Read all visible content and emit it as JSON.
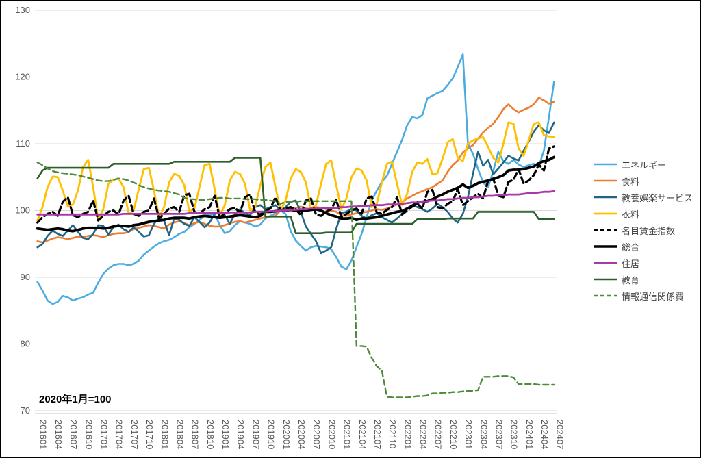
{
  "chart_data": {
    "type": "line",
    "note": "2020年1月=100",
    "grid": "horizontal",
    "legend_position": "right",
    "grid_color": "#D9D9D9",
    "axis_line_color": "#C9C9C9",
    "axis_label_color": "#595959",
    "ylim": [
      70,
      130
    ],
    "y_ticks": [
      70,
      80,
      90,
      100,
      110,
      120,
      130
    ],
    "x_tick_labels": [
      "201601",
      "201604",
      "201607",
      "201610",
      "201701",
      "201704",
      "201707",
      "201710",
      "201801",
      "201804",
      "201807",
      "201810",
      "201901",
      "201904",
      "201907",
      "201910",
      "202001",
      "202004",
      "202007",
      "202010",
      "202101",
      "202104",
      "202107",
      "202110",
      "202201",
      "202204",
      "202207",
      "202210",
      "202301",
      "202304",
      "202307",
      "202310",
      "202401",
      "202404",
      "202407"
    ],
    "months": [
      "201601",
      "201602",
      "201603",
      "201604",
      "201605",
      "201606",
      "201607",
      "201608",
      "201609",
      "201610",
      "201611",
      "201612",
      "201701",
      "201702",
      "201703",
      "201704",
      "201705",
      "201706",
      "201707",
      "201708",
      "201709",
      "201710",
      "201711",
      "201712",
      "201801",
      "201802",
      "201803",
      "201804",
      "201805",
      "201806",
      "201807",
      "201808",
      "201809",
      "201810",
      "201811",
      "201812",
      "201901",
      "201902",
      "201903",
      "201904",
      "201905",
      "201906",
      "201907",
      "201908",
      "201909",
      "201910",
      "201911",
      "201912",
      "202001",
      "202002",
      "202003",
      "202004",
      "202005",
      "202006",
      "202007",
      "202008",
      "202009",
      "202010",
      "202011",
      "202012",
      "202101",
      "202102",
      "202103",
      "202104",
      "202105",
      "202106",
      "202107",
      "202108",
      "202109",
      "202110",
      "202111",
      "202112",
      "202201",
      "202202",
      "202203",
      "202204",
      "202205",
      "202206",
      "202207",
      "202208",
      "202209",
      "202210",
      "202211",
      "202212",
      "202301",
      "202302",
      "202303",
      "202304",
      "202305",
      "202306",
      "202307",
      "202308",
      "202309",
      "202310",
      "202311",
      "202312",
      "202401",
      "202402",
      "202403",
      "202404",
      "202405",
      "202406",
      "202407"
    ],
    "series": [
      {
        "id": "energy",
        "label": "エネルギー",
        "color": "#4DACDF",
        "width": 2.6,
        "dash": "",
        "values": [
          89.3,
          88.0,
          86.5,
          86.0,
          86.3,
          87.2,
          87.0,
          86.5,
          86.8,
          87.0,
          87.4,
          87.7,
          89.2,
          90.5,
          91.3,
          91.8,
          92.0,
          92.0,
          91.8,
          92.0,
          92.5,
          93.4,
          94.0,
          94.6,
          95.1,
          95.4,
          95.6,
          96.0,
          96.5,
          96.8,
          97.5,
          98.0,
          98.6,
          99.2,
          99.4,
          99.5,
          97.8,
          96.6,
          96.9,
          97.8,
          98.4,
          98.2,
          98.0,
          97.6,
          97.9,
          98.8,
          99.2,
          99.6,
          100.0,
          99.5,
          96.9,
          95.5,
          94.7,
          94.0,
          94.5,
          94.7,
          94.6,
          94.5,
          94.2,
          93.0,
          91.6,
          91.2,
          92.5,
          94.5,
          96.5,
          99.0,
          101.5,
          103.0,
          104.3,
          105.2,
          107.0,
          108.8,
          110.6,
          112.8,
          114.0,
          113.8,
          114.3,
          116.8,
          117.2,
          117.6,
          117.9,
          118.8,
          119.8,
          121.5,
          123.4,
          110.0,
          108.5,
          106.2,
          104.2,
          103.5,
          105.9,
          108.8,
          107.4,
          107.0,
          107.6,
          106.9,
          106.5,
          106.8,
          107.0,
          106.6,
          109.0,
          114.0,
          119.3
        ]
      },
      {
        "id": "food",
        "label": "食料",
        "color": "#ED7D31",
        "width": 2.6,
        "dash": "",
        "values": [
          95.4,
          95.2,
          95.5,
          95.8,
          96.0,
          95.9,
          95.7,
          95.9,
          96.1,
          96.0,
          96.2,
          96.3,
          96.2,
          96.0,
          96.3,
          96.5,
          96.6,
          96.6,
          96.8,
          97.2,
          97.4,
          97.6,
          97.8,
          97.7,
          97.5,
          97.3,
          97.9,
          98.2,
          98.4,
          98.1,
          97.8,
          98.1,
          98.3,
          98.0,
          97.7,
          97.6,
          97.6,
          97.8,
          98.1,
          98.3,
          98.4,
          98.2,
          98.4,
          98.6,
          98.8,
          99.0,
          99.1,
          99.2,
          100.0,
          100.3,
          100.2,
          100.4,
          100.6,
          100.3,
          100.2,
          100.5,
          100.4,
          100.2,
          100.0,
          99.8,
          99.3,
          99.2,
          99.4,
          99.6,
          99.7,
          99.8,
          100.0,
          100.2,
          100.1,
          100.3,
          100.6,
          100.9,
          101.3,
          101.8,
          102.2,
          102.6,
          102.9,
          103.2,
          103.5,
          104.0,
          104.5,
          105.8,
          106.8,
          107.5,
          108.7,
          109.3,
          109.8,
          110.8,
          111.7,
          112.4,
          113.0,
          114.0,
          115.2,
          115.9,
          115.2,
          114.7,
          115.1,
          115.4,
          115.9,
          116.9,
          116.5,
          116.0,
          116.3
        ]
      },
      {
        "id": "culture-recreation-services",
        "label": "教養娯楽サービス",
        "color": "#1F6584",
        "width": 2.6,
        "dash": "",
        "values": [
          94.5,
          95.0,
          96.2,
          97.0,
          96.5,
          96.2,
          97.0,
          97.8,
          96.8,
          95.9,
          95.7,
          96.5,
          97.8,
          97.7,
          96.4,
          97.5,
          97.9,
          97.2,
          96.8,
          97.5,
          96.8,
          96.1,
          96.3,
          98.0,
          98.9,
          98.5,
          96.3,
          98.8,
          98.6,
          98.0,
          97.7,
          99.0,
          98.3,
          97.5,
          98.2,
          99.5,
          99.8,
          99.3,
          98.0,
          99.5,
          100.2,
          99.6,
          99.3,
          100.5,
          100.8,
          100.2,
          100.5,
          100.8,
          100.0,
          100.5,
          101.3,
          101.5,
          99.8,
          97.6,
          96.5,
          95.4,
          93.6,
          94.0,
          94.5,
          97.3,
          99.6,
          99.8,
          100.3,
          100.0,
          99.2,
          98.8,
          99.3,
          99.6,
          99.0,
          98.6,
          98.2,
          98.8,
          99.5,
          100.2,
          100.8,
          100.5,
          100.2,
          99.8,
          100.3,
          101.0,
          100.5,
          99.8,
          98.8,
          98.2,
          99.5,
          102.0,
          105.5,
          108.8,
          106.7,
          107.6,
          105.4,
          106.3,
          107.2,
          108.2,
          107.8,
          107.5,
          109.0,
          110.3,
          111.8,
          112.8,
          112.0,
          111.6,
          113.2
        ]
      },
      {
        "id": "clothing",
        "label": "衣料",
        "color": "#FFC000",
        "width": 2.8,
        "dash": "",
        "values": [
          98.5,
          100.5,
          103.5,
          105.1,
          105.0,
          103.0,
          100.6,
          100.9,
          103.0,
          106.5,
          107.6,
          103.5,
          98.6,
          100.2,
          104.0,
          104.6,
          104.8,
          103.5,
          99.5,
          100.0,
          103.2,
          106.2,
          106.4,
          103.0,
          99.0,
          100.5,
          104.2,
          105.5,
          105.2,
          103.8,
          99.8,
          100.3,
          103.5,
          106.8,
          107.0,
          103.2,
          99.2,
          100.8,
          104.5,
          105.8,
          105.5,
          104.0,
          100.0,
          100.5,
          103.8,
          106.5,
          107.2,
          103.5,
          100.0,
          101.5,
          104.8,
          106.2,
          105.8,
          104.2,
          100.3,
          100.8,
          104.0,
          107.0,
          107.5,
          103.8,
          100.2,
          101.8,
          105.0,
          106.3,
          106.0,
          104.5,
          100.5,
          101.0,
          104.2,
          107.0,
          107.3,
          104.0,
          100.8,
          102.5,
          105.8,
          107.2,
          107.0,
          107.7,
          105.4,
          105.6,
          107.8,
          110.2,
          110.7,
          107.9,
          107.4,
          110.0,
          110.5,
          110.8,
          111.0,
          109.5,
          107.9,
          107.2,
          110.0,
          113.2,
          113.0,
          109.3,
          108.2,
          110.5,
          113.0,
          113.2,
          111.3,
          111.1,
          111.0
        ]
      },
      {
        "id": "nominal-wage-index",
        "label": "名目賃金指数",
        "color": "#000000",
        "width": 3.2,
        "dash": "9 5",
        "values": [
          98.2,
          99.0,
          99.5,
          99.8,
          99.2,
          101.3,
          102.0,
          99.3,
          99.0,
          99.5,
          99.8,
          101.5,
          98.5,
          99.2,
          99.8,
          100.0,
          99.4,
          101.5,
          102.2,
          99.5,
          99.2,
          99.8,
          100.0,
          101.8,
          98.8,
          99.5,
          100.3,
          100.5,
          99.8,
          102.3,
          102.5,
          99.8,
          99.5,
          100.2,
          100.5,
          102.2,
          98.9,
          99.6,
          100.2,
          100.4,
          99.7,
          102.0,
          102.4,
          99.7,
          99.4,
          100.0,
          100.3,
          102.0,
          100.0,
          100.3,
          100.5,
          100.2,
          99.3,
          101.5,
          101.8,
          99.4,
          99.2,
          99.8,
          100.2,
          101.6,
          99.0,
          99.5,
          100.0,
          100.3,
          99.5,
          101.8,
          102.1,
          99.7,
          99.5,
          100.1,
          100.5,
          102.0,
          99.4,
          100.0,
          100.6,
          101.0,
          100.3,
          102.8,
          103.1,
          100.5,
          100.3,
          101.0,
          101.4,
          103.2,
          100.8,
          101.4,
          102.0,
          102.5,
          101.8,
          104.5,
          104.8,
          102.2,
          102.0,
          104.3,
          104.6,
          106.2,
          104.0,
          104.5,
          105.3,
          106.9,
          106.0,
          109.3,
          109.6
        ]
      },
      {
        "id": "overall",
        "label": "総合",
        "color": "#000000",
        "width": 3.8,
        "dash": "",
        "values": [
          97.3,
          97.2,
          97.1,
          97.2,
          97.3,
          97.2,
          97.0,
          96.9,
          97.1,
          97.3,
          97.4,
          97.4,
          97.4,
          97.3,
          97.4,
          97.6,
          97.7,
          97.7,
          97.6,
          97.8,
          97.9,
          98.1,
          98.3,
          98.4,
          98.5,
          98.6,
          98.8,
          98.9,
          98.9,
          98.9,
          98.8,
          99.0,
          99.1,
          99.2,
          99.1,
          99.0,
          98.9,
          99.0,
          99.1,
          99.2,
          99.3,
          99.2,
          99.1,
          99.0,
          99.2,
          99.8,
          99.8,
          99.9,
          100.0,
          100.0,
          100.1,
          100.0,
          100.0,
          100.0,
          100.1,
          100.2,
          100.0,
          99.6,
          99.3,
          99.1,
          98.8,
          98.8,
          98.9,
          98.6,
          98.8,
          98.8,
          98.9,
          99.0,
          99.2,
          99.4,
          99.6,
          99.8,
          99.9,
          100.3,
          100.7,
          101.2,
          101.3,
          101.4,
          101.7,
          102.1,
          102.4,
          102.8,
          103.1,
          103.4,
          103.9,
          103.4,
          103.7,
          104.1,
          104.3,
          104.5,
          104.7,
          105.0,
          105.3,
          106.0,
          106.1,
          106.1,
          106.2,
          106.4,
          106.6,
          107.1,
          107.4,
          107.6,
          108.0
        ]
      },
      {
        "id": "housing",
        "label": "住居",
        "color": "#A939A9",
        "width": 2.8,
        "dash": "",
        "values": [
          99.4,
          99.4,
          99.4,
          99.4,
          99.4,
          99.4,
          99.4,
          99.4,
          99.4,
          99.4,
          99.4,
          99.4,
          99.4,
          99.4,
          99.4,
          99.4,
          99.4,
          99.5,
          99.5,
          99.5,
          99.5,
          99.5,
          99.5,
          99.5,
          99.5,
          99.5,
          99.5,
          99.5,
          99.5,
          99.5,
          99.6,
          99.6,
          99.6,
          99.6,
          99.6,
          99.6,
          99.6,
          99.6,
          99.7,
          99.7,
          99.7,
          99.7,
          99.7,
          99.8,
          99.8,
          99.8,
          99.9,
          99.9,
          100.0,
          100.0,
          100.1,
          100.1,
          100.2,
          100.2,
          100.3,
          100.3,
          100.3,
          100.4,
          100.4,
          100.4,
          100.5,
          100.5,
          100.6,
          100.6,
          100.7,
          100.7,
          100.8,
          100.8,
          100.8,
          100.9,
          100.9,
          100.9,
          101.0,
          101.1,
          101.2,
          101.2,
          101.3,
          101.4,
          101.5,
          101.5,
          101.6,
          101.7,
          101.7,
          101.8,
          101.9,
          101.9,
          102.0,
          102.0,
          102.1,
          102.2,
          102.2,
          102.3,
          102.3,
          102.4,
          102.4,
          102.4,
          102.5,
          102.6,
          102.6,
          102.7,
          102.8,
          102.8,
          102.9
        ]
      },
      {
        "id": "education",
        "label": "教育",
        "color": "#2D5E2D",
        "width": 2.6,
        "dash": "",
        "values": [
          104.8,
          106.0,
          106.4,
          106.4,
          106.4,
          106.4,
          106.4,
          106.4,
          106.4,
          106.4,
          106.4,
          106.4,
          106.4,
          106.4,
          106.4,
          107.0,
          107.0,
          107.0,
          107.0,
          107.0,
          107.0,
          107.0,
          107.0,
          107.0,
          107.0,
          107.0,
          107.0,
          107.3,
          107.3,
          107.3,
          107.3,
          107.3,
          107.3,
          107.3,
          107.3,
          107.3,
          107.3,
          107.3,
          107.3,
          107.9,
          107.9,
          107.9,
          107.9,
          107.9,
          107.9,
          99.1,
          99.1,
          99.1,
          99.1,
          99.1,
          99.1,
          96.6,
          96.6,
          96.6,
          96.6,
          96.6,
          96.6,
          96.7,
          96.7,
          96.7,
          96.7,
          96.7,
          96.7,
          98.0,
          98.0,
          98.0,
          98.0,
          98.0,
          98.0,
          98.0,
          98.0,
          98.0,
          98.0,
          98.0,
          98.0,
          98.7,
          98.7,
          98.7,
          98.7,
          98.7,
          98.7,
          98.8,
          98.8,
          98.8,
          98.8,
          98.8,
          98.8,
          99.8,
          99.8,
          99.8,
          99.8,
          99.8,
          99.8,
          99.8,
          99.8,
          99.8,
          99.8,
          99.8,
          99.8,
          98.7,
          98.7,
          98.7,
          98.7
        ]
      },
      {
        "id": "info-communication",
        "label": "情報通信関係費",
        "color": "#4F8A3B",
        "width": 2.4,
        "dash": "8 5",
        "values": [
          107.2,
          106.8,
          106.3,
          105.9,
          105.7,
          105.6,
          105.5,
          105.4,
          105.3,
          105.1,
          104.9,
          104.7,
          104.5,
          104.4,
          104.4,
          104.6,
          104.8,
          104.7,
          104.5,
          104.2,
          103.8,
          103.5,
          103.3,
          103.1,
          103.0,
          102.9,
          102.8,
          102.6,
          102.4,
          101.9,
          101.7,
          101.7,
          101.6,
          101.6,
          101.7,
          101.8,
          101.9,
          101.9,
          101.8,
          101.8,
          101.8,
          101.7,
          101.7,
          101.7,
          101.6,
          101.6,
          101.5,
          101.4,
          101.0,
          101.3,
          101.3,
          101.3,
          101.4,
          101.4,
          101.4,
          101.4,
          101.4,
          101.4,
          101.4,
          101.4,
          101.4,
          101.4,
          101.4,
          79.7,
          79.7,
          79.6,
          77.9,
          76.7,
          76.0,
          72.1,
          72.0,
          72.0,
          72.0,
          72.0,
          72.1,
          72.2,
          72.2,
          72.3,
          72.6,
          72.6,
          72.7,
          72.7,
          72.8,
          72.8,
          72.9,
          73.0,
          73.0,
          73.1,
          75.1,
          75.1,
          75.1,
          75.2,
          75.2,
          75.2,
          75.0,
          74.0,
          74.0,
          74.0,
          74.0,
          73.9,
          73.9,
          73.9,
          73.9
        ]
      }
    ]
  }
}
